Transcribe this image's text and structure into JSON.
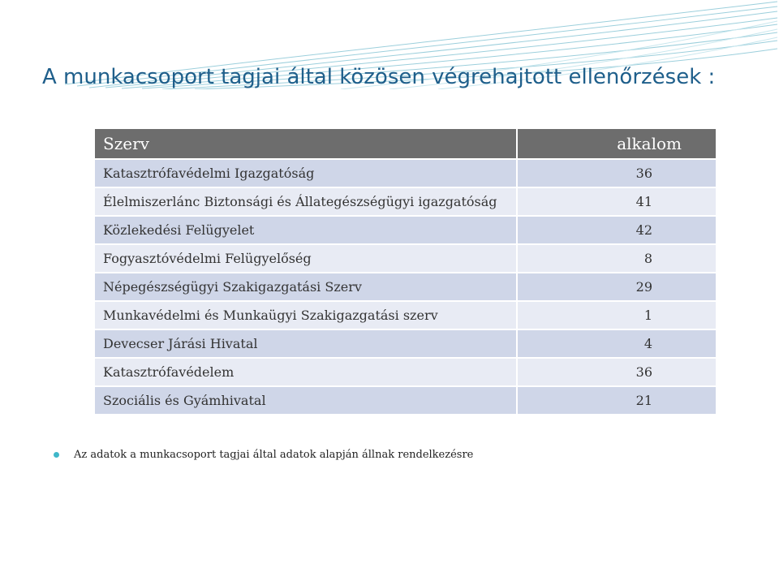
{
  "slide": {
    "title": "A munkacsoport tagjai által közösen végrehajtott ellenőrzések :",
    "accent_color": "#1f5f8b",
    "bullet_color": "#3fb7c9",
    "table": {
      "headers": {
        "name": "Szerv",
        "count": "alkalom"
      },
      "rows": [
        {
          "name": "Katasztrófavédelmi Igazgatóság",
          "count": "36"
        },
        {
          "name": "Élelmiszerlánc Biztonsági és Állategészségügyi igazgatóság",
          "count": "41"
        },
        {
          "name": "Közlekedési Felügyelet",
          "count": "42"
        },
        {
          "name": "Fogyasztóvédelmi Felügyelőség",
          "count": "8"
        },
        {
          "name": "Népegészségügyi Szakigazgatási Szerv",
          "count": "29"
        },
        {
          "name": "Munkavédelmi és Munkaügyi Szakigazgatási szerv",
          "count": "1"
        },
        {
          "name": "Devecser Járási Hivatal",
          "count": "4"
        },
        {
          "name": "Katasztrófavédelem",
          "count": "36"
        },
        {
          "name": "Szociális és Gyámhivatal",
          "count": "21"
        }
      ]
    },
    "note": "Az adatok a munkacsoport tagjai által adatok alapján állnak rendelkezésre"
  }
}
